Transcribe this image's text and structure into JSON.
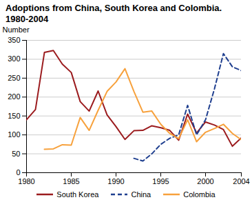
{
  "chart_data": {
    "type": "line",
    "title": "Adoptions from China, South Korea and Colombia. 1980-2004",
    "y_label": "Number",
    "x": [
      1980,
      1981,
      1982,
      1983,
      1984,
      1985,
      1986,
      1987,
      1988,
      1989,
      1990,
      1991,
      1992,
      1993,
      1994,
      1995,
      1996,
      1997,
      1998,
      1999,
      2000,
      2001,
      2002,
      2003,
      2004
    ],
    "series": [
      {
        "name": "South Korea",
        "color": "#9b1b1e",
        "line_style": "solid",
        "values": [
          140,
          167,
          318,
          323,
          287,
          265,
          188,
          163,
          216,
          153,
          122,
          88,
          111,
          112,
          124,
          119,
          112,
          86,
          155,
          105,
          134,
          126,
          114,
          70,
          92
        ]
      },
      {
        "name": "China",
        "color": "#1f3f8f",
        "line_style": "dashed",
        "values": [
          null,
          null,
          null,
          null,
          null,
          null,
          null,
          null,
          null,
          null,
          null,
          null,
          38,
          31,
          50,
          75,
          91,
          100,
          178,
          100,
          140,
          222,
          315,
          280,
          270
        ]
      },
      {
        "name": "Colombia",
        "color": "#f7a13c",
        "line_style": "solid",
        "values": [
          null,
          null,
          62,
          63,
          74,
          73,
          146,
          112,
          165,
          215,
          240,
          275,
          215,
          160,
          163,
          128,
          104,
          90,
          140,
          82,
          107,
          117,
          128,
          104,
          87
        ]
      }
    ],
    "xlim": [
      1980,
      2004
    ],
    "xticks": [
      1980,
      1985,
      1990,
      1995,
      2000,
      2004
    ],
    "ylim": [
      0,
      350
    ],
    "yticks": [
      0,
      50,
      100,
      150,
      200,
      250,
      300,
      350
    ],
    "grid": true,
    "legend": "bottom"
  }
}
